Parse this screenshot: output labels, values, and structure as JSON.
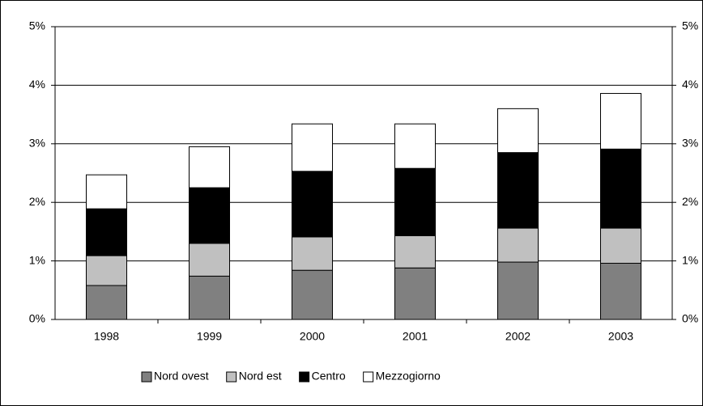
{
  "chart_data": {
    "type": "stacked_bar",
    "categories": [
      "1998",
      "1999",
      "2000",
      "2001",
      "2002",
      "2003"
    ],
    "series": [
      {
        "name": "Nord ovest",
        "color": "#808080",
        "values": [
          0.58,
          0.74,
          0.84,
          0.88,
          0.98,
          0.96
        ]
      },
      {
        "name": "Nord est",
        "color": "#c0c0c0",
        "values": [
          0.51,
          0.56,
          0.57,
          0.55,
          0.58,
          0.6
        ]
      },
      {
        "name": "Centro",
        "color": "#000000",
        "values": [
          0.8,
          0.95,
          1.12,
          1.15,
          1.29,
          1.35
        ]
      },
      {
        "name": "Mezzogiorno",
        "color": "#ffffff",
        "values": [
          0.58,
          0.7,
          0.81,
          0.76,
          0.75,
          0.95
        ]
      }
    ],
    "ylim": [
      0,
      5
    ],
    "yticks": [
      {
        "value": 0,
        "label": "0%"
      },
      {
        "value": 1,
        "label": "1%"
      },
      {
        "value": 2,
        "label": "2%"
      },
      {
        "value": 3,
        "label": "3%"
      },
      {
        "value": 4,
        "label": "4%"
      },
      {
        "value": 5,
        "label": "5%"
      }
    ],
    "y2lim": [
      0,
      5
    ],
    "y2ticks": [
      {
        "value": 0,
        "label": "0%"
      },
      {
        "value": 1,
        "label": "1%"
      },
      {
        "value": 2,
        "label": "2%"
      },
      {
        "value": 3,
        "label": "3%"
      },
      {
        "value": 4,
        "label": "4%"
      },
      {
        "value": 5,
        "label": "5%"
      }
    ],
    "grid": true,
    "legend": "bottom"
  }
}
